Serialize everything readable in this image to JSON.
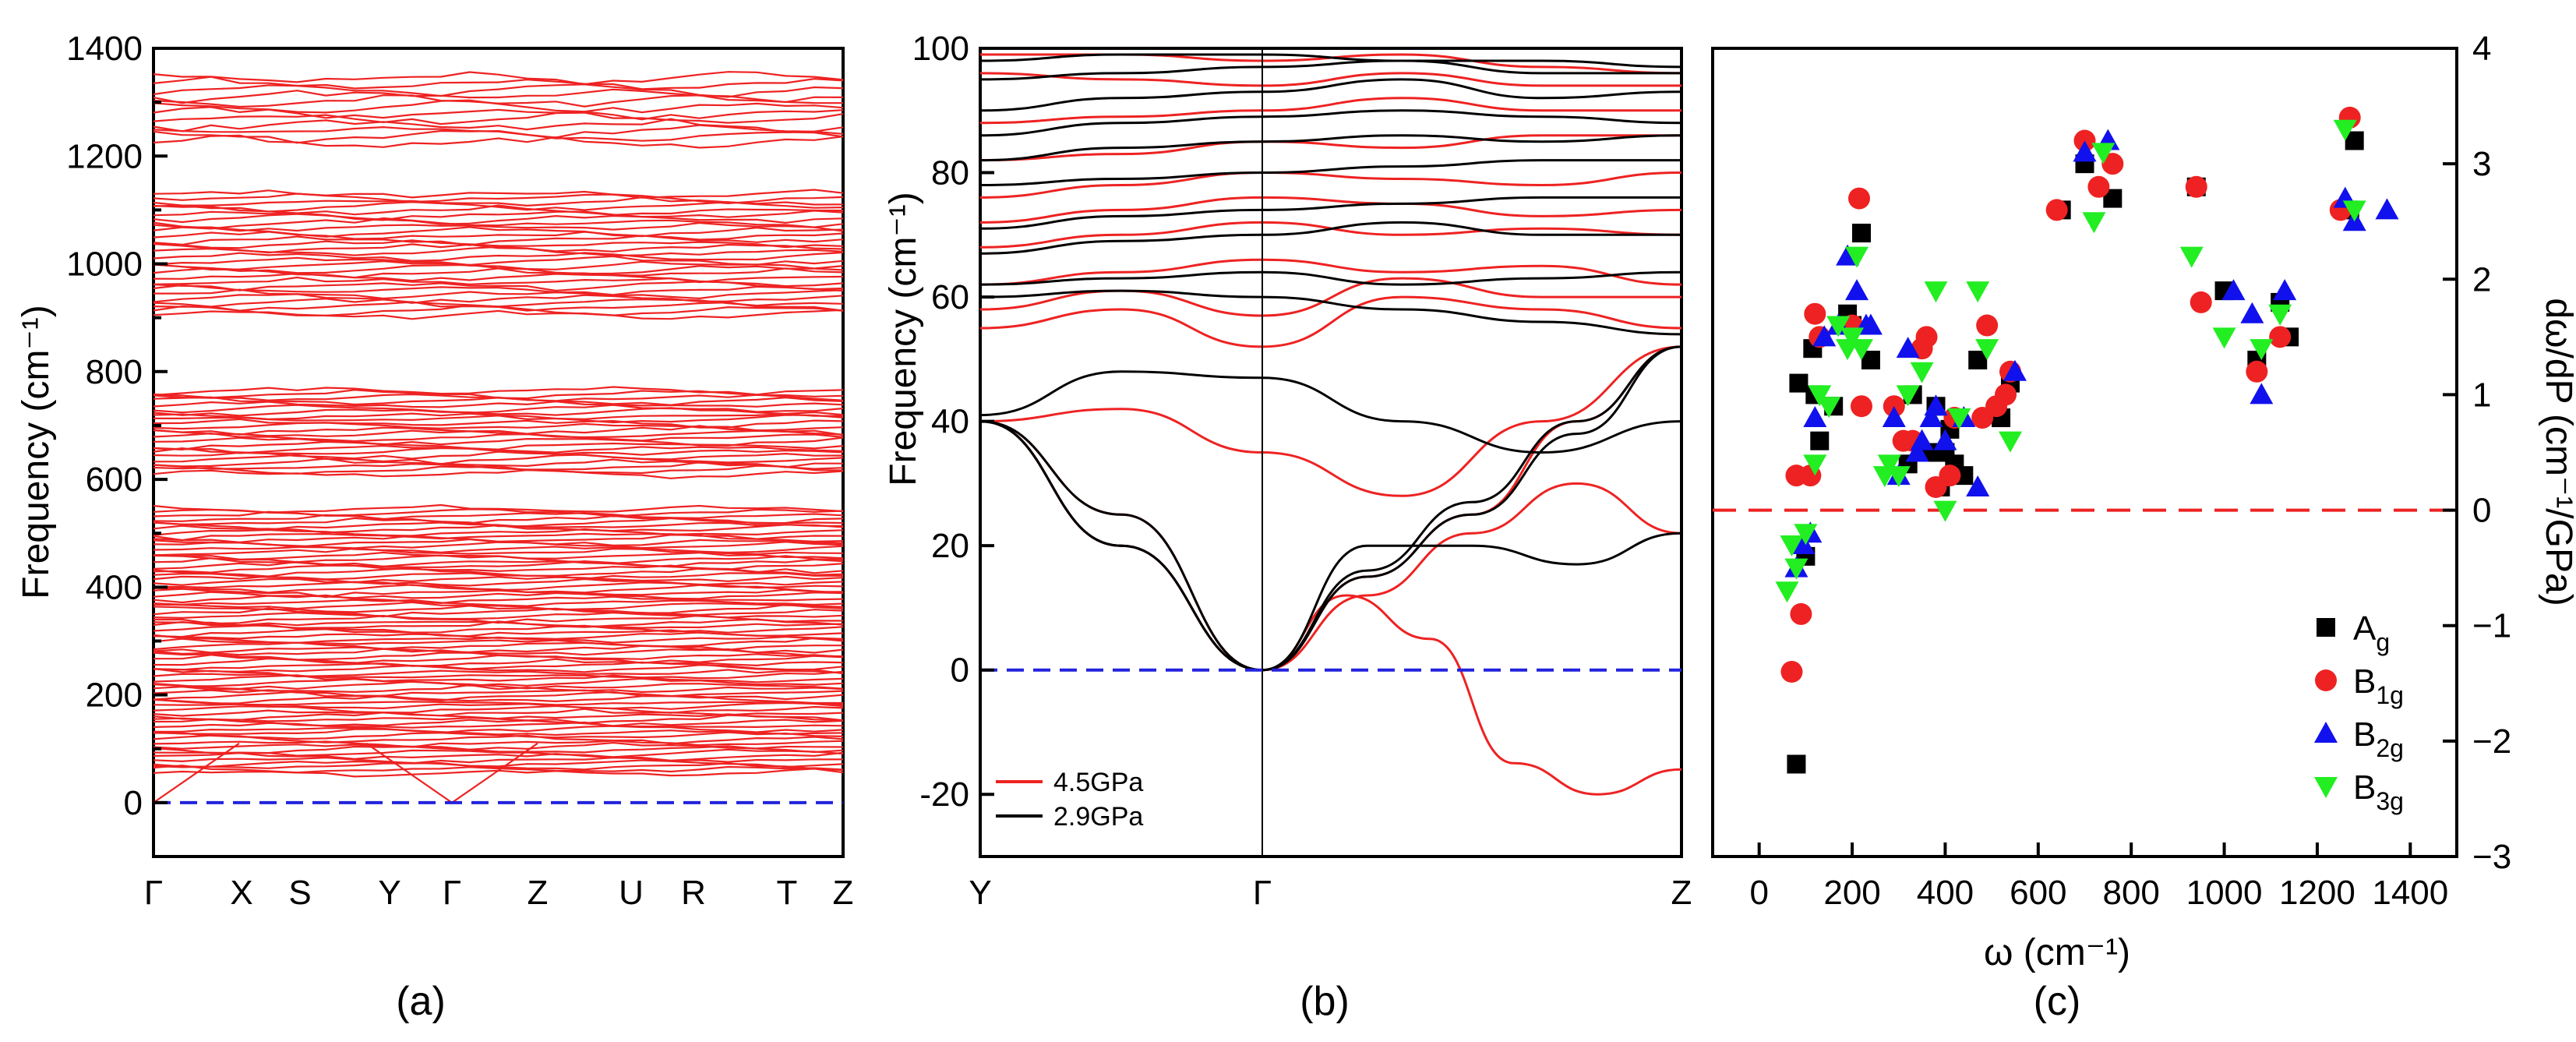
{
  "chart_data": [
    {
      "panel": "(a)",
      "type": "line",
      "ylabel": "Frequency (cm⁻¹)",
      "ylim": [
        -100,
        1400
      ],
      "yticks": [
        0,
        200,
        400,
        600,
        800,
        1000,
        1200,
        1400
      ],
      "xticks": [
        "Γ",
        "X",
        "S",
        "Y",
        "Γ",
        "Z",
        "U",
        "R",
        "T",
        "Z"
      ],
      "zero_line_color": "#2222dd",
      "band_color": "#ee2222",
      "band_groups": [
        {
          "ymin": 55,
          "ymax": 545,
          "count": 80
        },
        {
          "ymin": 610,
          "ymax": 765,
          "count": 24
        },
        {
          "ymin": 905,
          "ymax": 1130,
          "count": 30
        },
        {
          "ymin": 1225,
          "ymax": 1345,
          "count": 12
        }
      ]
    },
    {
      "panel": "(b)",
      "type": "line",
      "ylabel": "Frequency (cm⁻¹)",
      "ylim": [
        -30,
        100
      ],
      "yticks": [
        -20,
        0,
        20,
        40,
        60,
        80,
        100
      ],
      "xticks": [
        "Y",
        "Γ",
        "Z"
      ],
      "zero_line_color": "#2222dd",
      "series": [
        {
          "name": "4.5GPa",
          "color": "#ee2222",
          "lines": [
            {
              "y": [
                40,
                20,
                0,
                15,
                25,
                40,
                52
              ]
            },
            {
              "y": [
                40,
                20,
                0,
                12,
                22,
                30,
                22
              ]
            },
            {
              "y": [
                40,
                25,
                0,
                12,
                5,
                -15,
                -20,
                -16
              ]
            },
            {
              "y": [
                40,
                42,
                35,
                28,
                40,
                52
              ]
            },
            {
              "y": [
                55,
                58,
                52,
                60,
                58,
                55
              ]
            },
            {
              "y": [
                58,
                61,
                57,
                63,
                60,
                60
              ]
            },
            {
              "y": [
                62,
                64,
                66,
                64,
                65,
                62
              ]
            },
            {
              "y": [
                68,
                70,
                72,
                70,
                71,
                70
              ]
            },
            {
              "y": [
                72,
                74,
                76,
                75,
                73,
                74
              ]
            },
            {
              "y": [
                76,
                78,
                80,
                79,
                78,
                80
              ]
            },
            {
              "y": [
                82,
                83,
                85,
                84,
                86,
                86
              ]
            },
            {
              "y": [
                88,
                89,
                90,
                92,
                90,
                90
              ]
            },
            {
              "y": [
                96,
                95,
                94,
                96,
                94,
                94
              ]
            },
            {
              "y": [
                99,
                99,
                98,
                99,
                97,
                96
              ]
            }
          ]
        },
        {
          "name": "2.9GPa",
          "color": "#000000",
          "lines": [
            {
              "y": [
                40,
                20,
                0,
                16,
                27,
                40,
                52
              ]
            },
            {
              "y": [
                40,
                20,
                0,
                15,
                25,
                38,
                52
              ]
            },
            {
              "y": [
                40,
                25,
                0,
                20,
                20,
                17,
                22
              ]
            },
            {
              "y": [
                41,
                48,
                47,
                40,
                35,
                40
              ]
            },
            {
              "y": [
                60,
                61,
                60,
                58,
                56,
                54
              ]
            },
            {
              "y": [
                62,
                63,
                64,
                62,
                63,
                64
              ]
            },
            {
              "y": [
                67,
                69,
                70,
                72,
                70,
                70
              ]
            },
            {
              "y": [
                71,
                73,
                74,
                75,
                76,
                76
              ]
            },
            {
              "y": [
                78,
                79,
                80,
                81,
                82,
                82
              ]
            },
            {
              "y": [
                82,
                84,
                85,
                86,
                85,
                86
              ]
            },
            {
              "y": [
                86,
                88,
                89,
                90,
                89,
                88
              ]
            },
            {
              "y": [
                90,
                92,
                93,
                95,
                92,
                93
              ]
            },
            {
              "y": [
                95,
                96,
                97,
                98,
                96,
                96
              ]
            },
            {
              "y": [
                98,
                99,
                99,
                98,
                98,
                97
              ]
            }
          ]
        }
      ]
    },
    {
      "panel": "(c)",
      "type": "scatter",
      "xlabel": "ω (cm⁻¹)",
      "ylabel": "dω/dP (cm⁻¹/GPa)",
      "xlim": [
        -100,
        1500
      ],
      "ylim": [
        -3,
        4
      ],
      "xticks": [
        0,
        200,
        400,
        600,
        800,
        1000,
        1200,
        1400
      ],
      "yticks": [
        -3,
        -2,
        -1,
        0,
        1,
        2,
        3,
        4
      ],
      "zero_line_color": "#ee2222",
      "legend_position": "bottom-right",
      "series": [
        {
          "name": "A",
          "subscript": "g",
          "marker": "square",
          "color": "#000000",
          "points": [
            [
              80,
              -2.2
            ],
            [
              85,
              1.1
            ],
            [
              100,
              -0.4
            ],
            [
              115,
              1.4
            ],
            [
              120,
              1.0
            ],
            [
              130,
              0.6
            ],
            [
              160,
              0.9
            ],
            [
              190,
              1.7
            ],
            [
              200,
              1.6
            ],
            [
              220,
              2.4
            ],
            [
              240,
              1.3
            ],
            [
              320,
              0.4
            ],
            [
              330,
              1.0
            ],
            [
              360,
              0.5
            ],
            [
              380,
              0.9
            ],
            [
              390,
              0.2
            ],
            [
              400,
              0.5
            ],
            [
              410,
              0.7
            ],
            [
              420,
              0.4
            ],
            [
              440,
              0.3
            ],
            [
              470,
              1.3
            ],
            [
              520,
              0.8
            ],
            [
              540,
              1.1
            ],
            [
              650,
              2.6
            ],
            [
              700,
              3.0
            ],
            [
              760,
              2.7
            ],
            [
              940,
              2.8
            ],
            [
              1000,
              1.9
            ],
            [
              1070,
              1.3
            ],
            [
              1120,
              1.8
            ],
            [
              1140,
              1.5
            ],
            [
              1270,
              2.6
            ],
            [
              1280,
              3.2
            ]
          ]
        },
        {
          "name": "B",
          "subscript": "1g",
          "marker": "circle",
          "color": "#ee2222",
          "points": [
            [
              70,
              -1.4
            ],
            [
              80,
              0.3
            ],
            [
              90,
              -0.9
            ],
            [
              110,
              0.3
            ],
            [
              120,
              1.7
            ],
            [
              130,
              1.5
            ],
            [
              200,
              1.6
            ],
            [
              215,
              2.7
            ],
            [
              220,
              0.9
            ],
            [
              290,
              0.9
            ],
            [
              310,
              0.6
            ],
            [
              330,
              0.6
            ],
            [
              350,
              1.4
            ],
            [
              360,
              1.5
            ],
            [
              380,
              0.2
            ],
            [
              410,
              0.3
            ],
            [
              420,
              0.8
            ],
            [
              480,
              0.8
            ],
            [
              490,
              1.6
            ],
            [
              510,
              0.9
            ],
            [
              530,
              1.0
            ],
            [
              540,
              1.2
            ],
            [
              640,
              2.6
            ],
            [
              700,
              3.2
            ],
            [
              730,
              2.8
            ],
            [
              760,
              3.0
            ],
            [
              940,
              2.8
            ],
            [
              950,
              1.8
            ],
            [
              1070,
              1.2
            ],
            [
              1120,
              1.5
            ],
            [
              1250,
              2.6
            ],
            [
              1270,
              3.4
            ]
          ]
        },
        {
          "name": "B",
          "subscript": "2g",
          "marker": "triangle-up",
          "color": "#1111ee",
          "points": [
            [
              80,
              -0.5
            ],
            [
              95,
              -0.3
            ],
            [
              110,
              -0.2
            ],
            [
              120,
              0.8
            ],
            [
              140,
              1.5
            ],
            [
              170,
              1.6
            ],
            [
              190,
              2.2
            ],
            [
              210,
              1.9
            ],
            [
              230,
              1.6
            ],
            [
              240,
              1.6
            ],
            [
              290,
              0.8
            ],
            [
              300,
              0.3
            ],
            [
              320,
              1.4
            ],
            [
              340,
              0.5
            ],
            [
              350,
              0.6
            ],
            [
              370,
              0.8
            ],
            [
              380,
              0.9
            ],
            [
              400,
              0.6
            ],
            [
              440,
              0.8
            ],
            [
              470,
              0.2
            ],
            [
              550,
              1.2
            ],
            [
              700,
              3.1
            ],
            [
              750,
              3.2
            ],
            [
              1020,
              1.9
            ],
            [
              1060,
              1.7
            ],
            [
              1080,
              1.0
            ],
            [
              1130,
              1.9
            ],
            [
              1260,
              2.7
            ],
            [
              1280,
              2.5
            ],
            [
              1350,
              2.6
            ]
          ]
        },
        {
          "name": "B",
          "subscript": "3g",
          "marker": "triangle-down",
          "color": "#22ee22",
          "points": [
            [
              60,
              -0.7
            ],
            [
              70,
              -0.3
            ],
            [
              80,
              -0.5
            ],
            [
              100,
              -0.2
            ],
            [
              120,
              0.4
            ],
            [
              130,
              1.0
            ],
            [
              150,
              0.9
            ],
            [
              170,
              1.6
            ],
            [
              190,
              1.4
            ],
            [
              200,
              1.5
            ],
            [
              210,
              2.2
            ],
            [
              220,
              1.4
            ],
            [
              270,
              0.3
            ],
            [
              280,
              0.4
            ],
            [
              300,
              0.3
            ],
            [
              320,
              1.0
            ],
            [
              350,
              1.2
            ],
            [
              380,
              1.9
            ],
            [
              400,
              0.0
            ],
            [
              430,
              0.8
            ],
            [
              470,
              1.9
            ],
            [
              490,
              1.4
            ],
            [
              540,
              0.6
            ],
            [
              720,
              2.5
            ],
            [
              740,
              3.1
            ],
            [
              930,
              2.2
            ],
            [
              1000,
              1.5
            ],
            [
              1080,
              1.4
            ],
            [
              1120,
              1.7
            ],
            [
              1260,
              3.3
            ],
            [
              1280,
              2.6
            ]
          ]
        }
      ]
    }
  ]
}
